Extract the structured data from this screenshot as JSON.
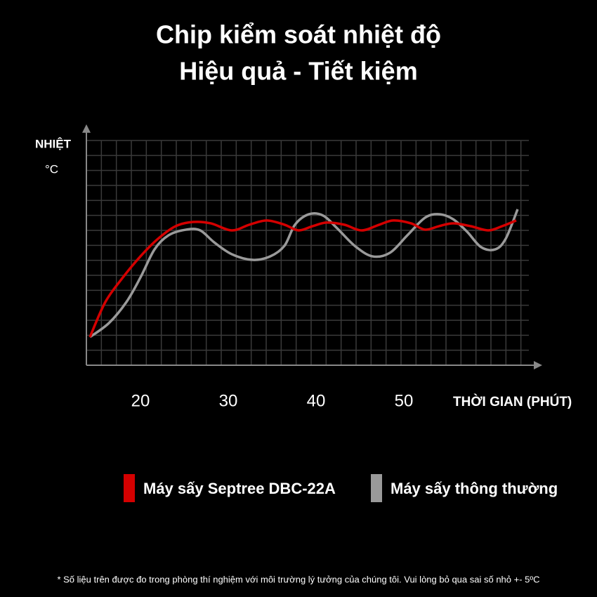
{
  "chart_data": {
    "type": "line",
    "title": "Chip kiểm soát nhiệt độ",
    "subtitle": "Hiệu quả - Tiết kiệm",
    "y_label": "NHIỆT",
    "y_unit": "°C",
    "x_label": "THỜI GIAN (PHÚT)",
    "xlim": [
      14,
      64
    ],
    "xticks": [
      20,
      30,
      40,
      50
    ],
    "ylim": [
      0,
      15
    ],
    "grid": true,
    "series": [
      {
        "name": "Máy sấy Septree DBC-22A",
        "color": "#d40000",
        "x": [
          14.24,
          16,
          18,
          20,
          22,
          24,
          26,
          28,
          30.4,
          32.4,
          34.4,
          36.4,
          38,
          39.6,
          41.2,
          43.2,
          45.2,
          47.2,
          48.8,
          50.8,
          52.4,
          54,
          55.6,
          57.6,
          59.6,
          61.2,
          62.8
        ],
        "values": [
          1.88,
          4.22,
          5.86,
          7.27,
          8.44,
          9.28,
          9.56,
          9.47,
          9.0,
          9.38,
          9.66,
          9.38,
          9.0,
          9.28,
          9.52,
          9.38,
          9.0,
          9.38,
          9.66,
          9.47,
          9.05,
          9.28,
          9.47,
          9.28,
          9.0,
          9.28,
          9.66
        ]
      },
      {
        "name": "Máy sấy thông thường",
        "color": "#9a9a9a",
        "x": [
          14.24,
          16.4,
          18.4,
          20,
          21.6,
          23.2,
          25.2,
          26.8,
          28.4,
          30.4,
          32.8,
          34.8,
          36.4,
          37.6,
          39.2,
          40.8,
          42.4,
          44.4,
          46.4,
          48.4,
          50.4,
          52.4,
          54,
          55.6,
          57.2,
          58.8,
          60.4,
          61.6,
          62.96
        ],
        "values": [
          1.88,
          2.81,
          4.22,
          5.86,
          7.73,
          8.67,
          9.05,
          9.0,
          8.2,
          7.41,
          7.03,
          7.27,
          7.97,
          9.38,
          10.08,
          9.99,
          9.14,
          7.97,
          7.27,
          7.5,
          8.67,
          9.84,
          10.08,
          9.75,
          8.91,
          7.88,
          7.73,
          8.44,
          10.41
        ]
      }
    ],
    "note": "* Số liệu trên được đo trong phòng thí nghiệm với môi trường lý tưởng của chúng tôi. Vui lòng bỏ qua sai số nhỏ +- 5ºC"
  }
}
